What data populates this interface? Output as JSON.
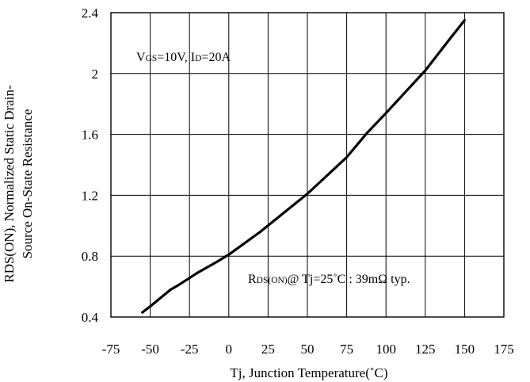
{
  "chart_data": {
    "type": "line",
    "xlabel": "Tj, Junction Temperature(˚C)",
    "ylabel_line1": "RDS(ON), Normalized Static Drain-",
    "ylabel_line2": "Source On-State Resistance",
    "xlim": [
      -75,
      175
    ],
    "ylim": [
      0.4,
      2.4
    ],
    "x_ticks": [
      -75,
      -50,
      -25,
      0,
      25,
      50,
      75,
      100,
      125,
      150,
      175
    ],
    "y_ticks": [
      0.4,
      0.8,
      1.2,
      1.6,
      2,
      2.4
    ],
    "x_tick_labels": [
      "-75",
      "-50",
      "-25",
      "0",
      "25",
      "50",
      "75",
      "100",
      "125",
      "150",
      "175"
    ],
    "y_tick_labels": [
      "0.4",
      "0.8",
      "1.2",
      "1.6",
      "2",
      "2.4"
    ],
    "grid": true,
    "series": [
      {
        "color": "#000000",
        "x": [
          -55,
          -50,
          -37,
          -32,
          -20,
          -8,
          0,
          20,
          50,
          75,
          88,
          100,
          125,
          140,
          150
        ],
        "y": [
          0.43,
          0.47,
          0.58,
          0.61,
          0.69,
          0.76,
          0.81,
          0.96,
          1.21,
          1.45,
          1.61,
          1.74,
          2.02,
          2.22,
          2.35
        ]
      }
    ],
    "annotations": {
      "conditions": {
        "main1": "V",
        "sub1": "GS",
        "main2": "=10V, I",
        "sub2": "D",
        "main3": "=20A"
      },
      "typical": {
        "main1": "R",
        "sub1": "DS(ON)",
        "main2": "@ Tj=25˚C : 39mΩ typ."
      }
    }
  }
}
